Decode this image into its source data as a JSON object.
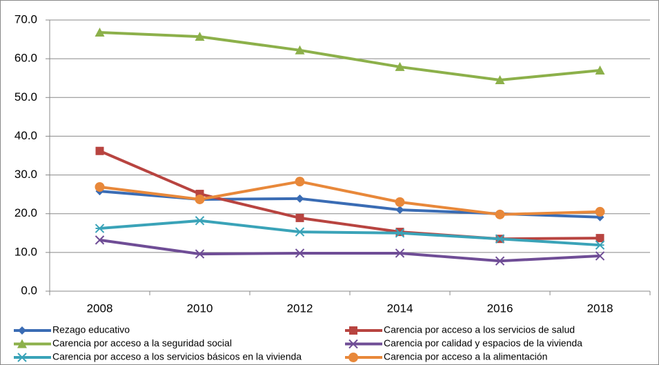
{
  "chart_data": {
    "type": "line",
    "categories": [
      "2008",
      "2010",
      "2012",
      "2014",
      "2016",
      "2018"
    ],
    "series": [
      {
        "name": "Rezago educativo",
        "color": "#3a6cb4",
        "marker": "diamond",
        "values": [
          25.8,
          23.7,
          23.9,
          21.0,
          20.0,
          19.1
        ]
      },
      {
        "name": "Carencia por acceso a los servicios de salud",
        "color": "#b84440",
        "marker": "square",
        "values": [
          36.2,
          25.1,
          18.9,
          15.3,
          13.5,
          13.7
        ]
      },
      {
        "name": "Carencia por acceso a la seguridad social",
        "color": "#8cb04a",
        "marker": "triangle",
        "values": [
          66.8,
          65.7,
          62.2,
          57.9,
          54.5,
          57.0
        ]
      },
      {
        "name": "Carencia por calidad y espacios de la vivienda",
        "color": "#6f4d96",
        "marker": "x",
        "values": [
          13.2,
          9.6,
          9.8,
          9.8,
          7.8,
          9.1
        ]
      },
      {
        "name": "Carencia por acceso a los servicios básicos en la vivienda",
        "color": "#3aa3b8",
        "marker": "star",
        "values": [
          16.2,
          18.2,
          15.3,
          15.0,
          13.5,
          11.9
        ]
      },
      {
        "name": "Carencia por acceso a la alimentación",
        "color": "#e8883a",
        "marker": "circle",
        "values": [
          26.9,
          23.7,
          28.3,
          23.0,
          19.8,
          20.5
        ]
      }
    ],
    "ylim": [
      0,
      70
    ],
    "yticks": [
      {
        "value": 0,
        "label": "0.0"
      },
      {
        "value": 10,
        "label": "10.0"
      },
      {
        "value": 20,
        "label": "20.0"
      },
      {
        "value": 30,
        "label": "30.0"
      },
      {
        "value": 40,
        "label": "40.0"
      },
      {
        "value": 50,
        "label": "50.0"
      },
      {
        "value": 60,
        "label": "60.0"
      },
      {
        "value": 70,
        "label": "70.0"
      }
    ],
    "grid": true
  }
}
